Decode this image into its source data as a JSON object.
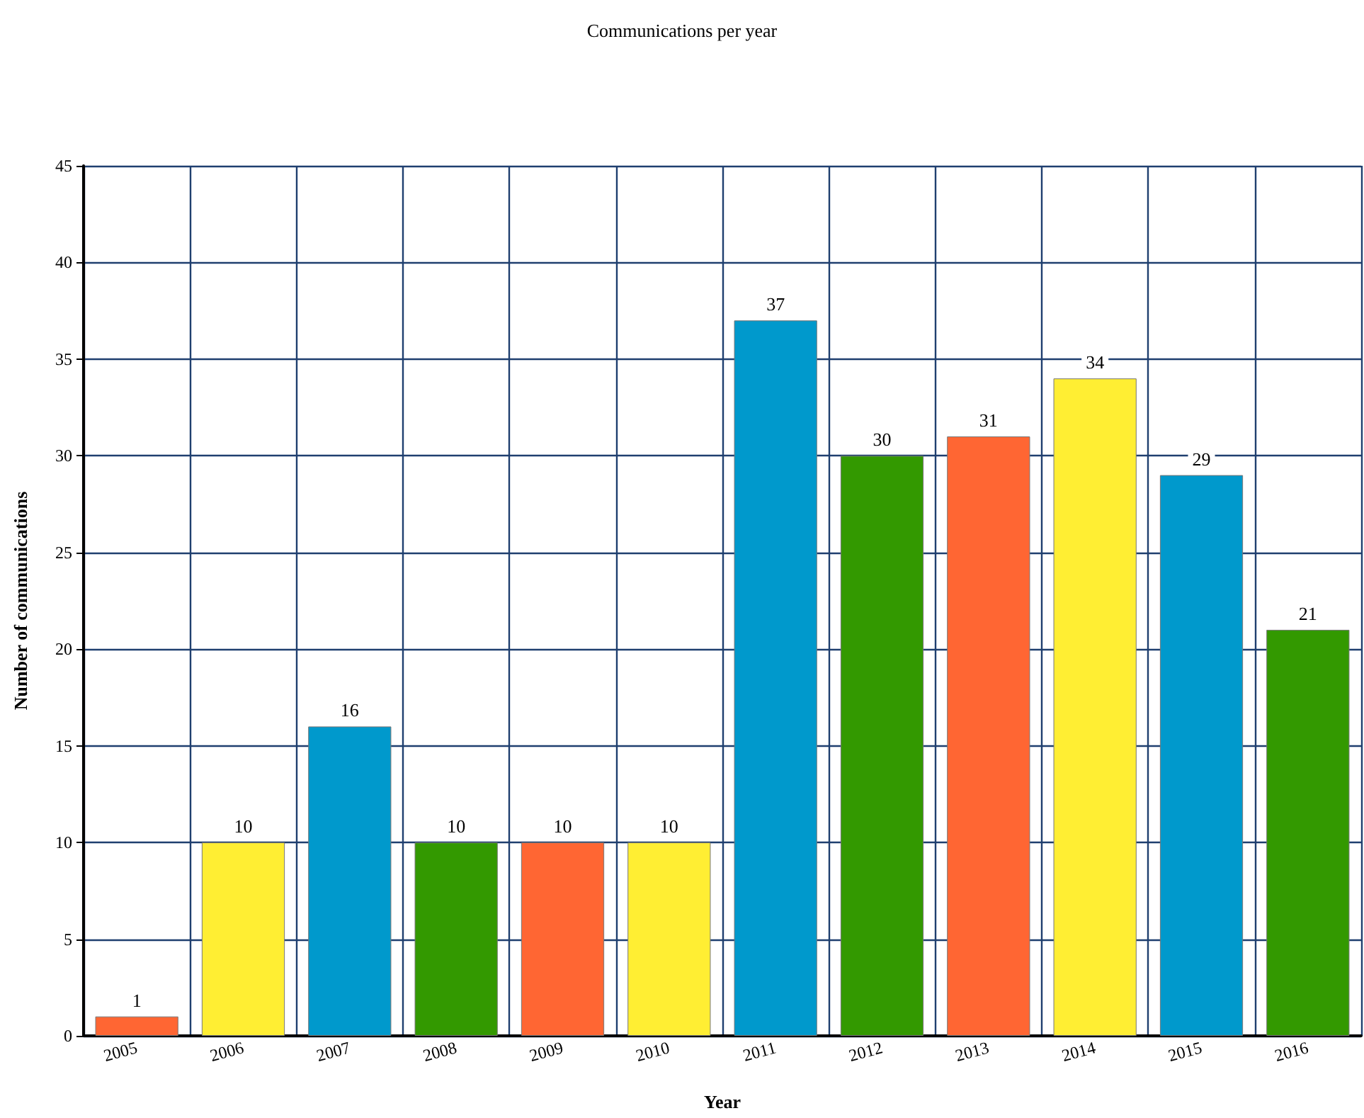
{
  "chart_data": {
    "type": "bar",
    "title": "Communications per year",
    "xlabel": "Year",
    "ylabel": "Number of communications",
    "categories": [
      "2005",
      "2006",
      "2007",
      "2008",
      "2009",
      "2010",
      "2011",
      "2012",
      "2013",
      "2014",
      "2015",
      "2016"
    ],
    "values": [
      1,
      10,
      16,
      10,
      10,
      10,
      37,
      30,
      31,
      34,
      29,
      21
    ],
    "colors": [
      "#ff6633",
      "#ffee33",
      "#0099cc",
      "#339900",
      "#ff6633",
      "#ffee33",
      "#0099cc",
      "#339900",
      "#ff6633",
      "#ffee33",
      "#0099cc",
      "#339900"
    ],
    "ylim": [
      0,
      45
    ],
    "yticks": [
      0,
      5,
      10,
      15,
      20,
      25,
      30,
      35,
      40,
      45
    ],
    "grid": true,
    "data_labels": true
  }
}
